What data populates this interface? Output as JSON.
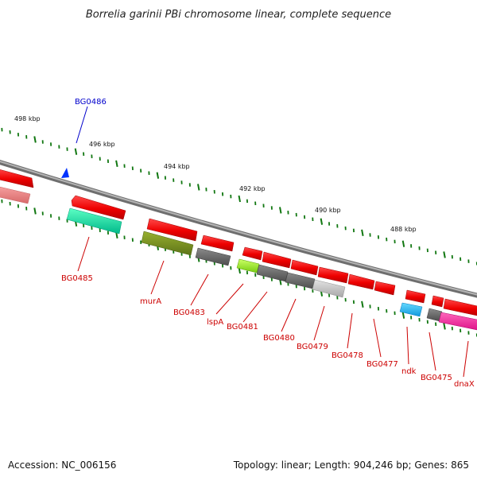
{
  "title": "Borrelia garinii PBi chromosome linear, complete sequence",
  "kbp_ticks": [
    "498 kbp",
    "496 kbp",
    "494 kbp",
    "492 kbp",
    "490 kbp",
    "488 kbp"
  ],
  "genes": [
    {
      "label": "BG0486",
      "selected": true
    },
    {
      "label": "BG0485"
    },
    {
      "label": "murA"
    },
    {
      "label": "BG0483"
    },
    {
      "label": "lspA"
    },
    {
      "label": "BG0481"
    },
    {
      "label": "BG0480"
    },
    {
      "label": "BG0479"
    },
    {
      "label": "BG0478"
    },
    {
      "label": "BG0477"
    },
    {
      "label": "ndk"
    },
    {
      "label": "BG0475"
    },
    {
      "label": "dnaX"
    }
  ],
  "colors": {
    "label": "#cc0000",
    "selected_label": "#0000cc",
    "tick": "#117711",
    "backbone": "#8c8c8c",
    "selection_marker": "#0033ff"
  },
  "footer": {
    "accession": "Accession: NC_006156",
    "summary": "Topology: linear; Length: 904,246 bp; Genes: 865"
  }
}
